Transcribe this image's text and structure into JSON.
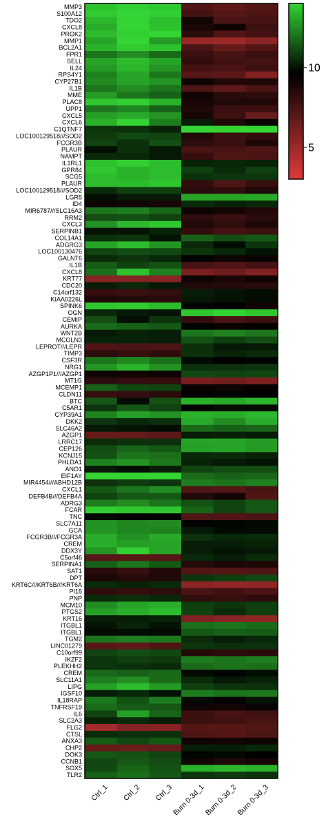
{
  "chart_data": {
    "type": "heatmap",
    "title": "",
    "xlabel": "",
    "ylabel": "",
    "columns": [
      "Ctrl_1",
      "Ctrl_2",
      "Ctrl_3",
      "Burn 0-3d_1",
      "Burn 0-3d_2",
      "Burn 0-3d_3"
    ],
    "rows": [
      "MMP3",
      "S100A12",
      "TDO2",
      "CXCL8",
      "PROK2",
      "MMP1",
      "BCL2A1",
      "FPR1",
      "SELL",
      "IL24",
      "RPS4Y1",
      "CYP27B1",
      "IL1B",
      "MME",
      "PLAC8",
      "UPP1",
      "CXCL5",
      "CXCL6",
      "C1QTNF7",
      "LOC100129518///SOD2",
      "FCGR3B",
      "PLAUR",
      "NAMPT",
      "IL1RL1",
      "GPR84",
      "SCG5",
      "PLAUR",
      "LOC100129518///SOD2",
      "LGR5",
      "ID4",
      "MIR6787///SLC16A3",
      "RRM2",
      "CXCL3",
      "SERPINB1",
      "COL14A1",
      "ADGRG3",
      "LOC100130476",
      "GALNT6",
      "IL1B",
      "CXCL8",
      "KRT77",
      "CDC20",
      "C14orf132",
      "KIAA0226L",
      "SPINK6",
      "OGN",
      "CEMIP",
      "AURKA",
      "WNT2B",
      "MCOLN3",
      "LEPROT///LEPR",
      "TIMP3",
      "CSF3R",
      "NRG1",
      "AZGP1P1///AZGP1",
      "MT1G",
      "MCEMP1",
      "CLDN11",
      "BTC",
      "C5AR1",
      "CYP39A1",
      "DKK2",
      "SLC46A2",
      "AZGP1",
      "LRRC17",
      "CEP126",
      "KCNJ15",
      "PHLDA1",
      "ANO1",
      "EIF1AY",
      "MIR4454///ABHD12B",
      "CXCL1",
      "DEFB4B///DEFB4A",
      "ADRG3",
      "FCAR",
      "TNC",
      "SLC7A11",
      "GCA",
      "FCGR3B///FCGR3A",
      "CREM",
      "DDX3Y",
      "C5orf46",
      "SERPINA1",
      "SAT1",
      "DPT",
      "KRT6C///KRT6B///KRT6A",
      "PI15",
      "PNP",
      "MCM10",
      "PTGS2",
      "KRT16",
      "ITGBL1",
      "ITGBL1",
      "TGM2",
      "LINC01279",
      "C10orf99",
      "IKZF2",
      "PLEKHH2",
      "CREM",
      "SLC11A1",
      "LIPG",
      "IGSF10",
      "IL18RAP",
      "TNFRSF19",
      "IL6",
      "SLC2A3",
      "FLG2",
      "CTSL",
      "ANXA3",
      "CHP2",
      "DOK3",
      "CCNB1",
      "SOX5",
      "TLR2"
    ],
    "values": [
      [
        13.6,
        13.9,
        13.7,
        7.2,
        6.8,
        7.1
      ],
      [
        13.8,
        14.1,
        13.9,
        7.6,
        7.1,
        7.3
      ],
      [
        13.4,
        14.2,
        13.5,
        9.0,
        7.4,
        7.5
      ],
      [
        13.2,
        14.3,
        13.6,
        8.8,
        9.1,
        7.8
      ],
      [
        13.5,
        13.9,
        14.6,
        8.3,
        7.2,
        7.6
      ],
      [
        13.0,
        14.1,
        12.8,
        5.2,
        5.0,
        5.5
      ],
      [
        13.3,
        13.8,
        13.6,
        7.4,
        6.6,
        7.2
      ],
      [
        12.0,
        12.5,
        11.8,
        7.9,
        7.5,
        7.9
      ],
      [
        13.0,
        13.5,
        13.0,
        8.1,
        7.7,
        7.6
      ],
      [
        12.8,
        13.4,
        12.7,
        7.6,
        7.4,
        7.8
      ],
      [
        12.3,
        13.0,
        12.1,
        7.0,
        6.9,
        5.8
      ],
      [
        12.5,
        13.0,
        12.7,
        9.2,
        8.7,
        8.7
      ],
      [
        12.0,
        12.5,
        12.0,
        7.3,
        6.8,
        7.4
      ],
      [
        12.8,
        12.0,
        11.6,
        9.1,
        8.4,
        8.2
      ],
      [
        13.7,
        13.9,
        13.3,
        8.9,
        8.6,
        8.7
      ],
      [
        12.0,
        12.4,
        11.6,
        8.7,
        7.9,
        7.8
      ],
      [
        12.9,
        13.1,
        12.7,
        8.9,
        7.8,
        6.5
      ],
      [
        13.3,
        14.4,
        12.2,
        10.2,
        8.6,
        9.3
      ],
      [
        10.7,
        10.6,
        10.3,
        14.1,
        14.2,
        14.1
      ],
      [
        10.8,
        11.1,
        11.0,
        8.6,
        7.9,
        8.1
      ],
      [
        11.0,
        10.6,
        11.2,
        8.3,
        7.9,
        8.7
      ],
      [
        9.9,
        10.6,
        10.1,
        7.5,
        7.5,
        7.3
      ],
      [
        10.5,
        10.4,
        10.1,
        8.0,
        7.3,
        7.4
      ],
      [
        13.6,
        13.9,
        13.5,
        10.3,
        10.4,
        10.3
      ],
      [
        13.7,
        13.3,
        13.5,
        10.9,
        10.5,
        10.9
      ],
      [
        13.5,
        13.3,
        13.5,
        10.6,
        10.7,
        10.7
      ],
      [
        13.5,
        13.5,
        13.7,
        8.1,
        7.3,
        8.0
      ],
      [
        10.5,
        10.9,
        10.9,
        8.4,
        8.2,
        8.7
      ],
      [
        9.9,
        10.1,
        10.1,
        13.0,
        13.0,
        13.1
      ],
      [
        9.2,
        9.1,
        8.9,
        10.5,
        10.3,
        10.4
      ],
      [
        12.0,
        12.2,
        11.7,
        9.2,
        9.0,
        8.6
      ],
      [
        11.2,
        11.3,
        11.0,
        8.3,
        7.9,
        8.4
      ],
      [
        12.6,
        13.4,
        13.7,
        8.6,
        8.2,
        8.8
      ],
      [
        10.0,
        10.0,
        10.3,
        8.1,
        7.6,
        7.8
      ],
      [
        10.6,
        10.7,
        10.0,
        11.6,
        11.2,
        11.4
      ],
      [
        13.0,
        13.5,
        12.7,
        10.4,
        9.9,
        10.7
      ],
      [
        11.0,
        11.2,
        11.1,
        10.7,
        10.4,
        10.0
      ],
      [
        10.5,
        10.7,
        10.4,
        9.5,
        9.2,
        9.3
      ],
      [
        11.5,
        11.0,
        11.3,
        7.5,
        7.2,
        7.6
      ],
      [
        11.9,
        13.6,
        12.3,
        6.0,
        6.4,
        5.8
      ],
      [
        5.6,
        5.7,
        5.6,
        9.2,
        8.8,
        9.1
      ],
      [
        10.2,
        10.4,
        10.1,
        8.6,
        8.5,
        8.4
      ],
      [
        8.0,
        7.9,
        8.1,
        10.2,
        10.0,
        9.9
      ],
      [
        8.6,
        8.5,
        8.4,
        10.1,
        10.0,
        9.8
      ],
      [
        13.7,
        13.8,
        13.5,
        9.7,
        9.6,
        9.0
      ],
      [
        10.4,
        10.1,
        10.0,
        13.7,
        14.2,
        13.7
      ],
      [
        11.2,
        9.9,
        10.7,
        8.1,
        7.4,
        7.8
      ],
      [
        11.8,
        11.6,
        11.4,
        9.7,
        9.3,
        9.4
      ],
      [
        10.1,
        10.3,
        10.2,
        12.0,
        12.3,
        12.0
      ],
      [
        10.3,
        10.3,
        10.2,
        11.3,
        10.9,
        11.2
      ],
      [
        7.2,
        7.4,
        7.3,
        10.6,
        10.1,
        10.1
      ],
      [
        8.3,
        8.0,
        8.2,
        10.6,
        10.3,
        10.5
      ],
      [
        12.0,
        12.4,
        11.9,
        9.8,
        9.6,
        9.7
      ],
      [
        12.7,
        13.3,
        12.6,
        10.6,
        10.6,
        10.7
      ],
      [
        9.2,
        9.1,
        9.2,
        11.1,
        11.0,
        11.1
      ],
      [
        8.3,
        8.1,
        8.0,
        6.0,
        6.2,
        5.9
      ],
      [
        11.6,
        11.1,
        11.0,
        9.3,
        9.2,
        9.4
      ],
      [
        8.0,
        8.1,
        8.4,
        9.5,
        9.7,
        9.6
      ],
      [
        11.4,
        9.8,
        11.3,
        13.3,
        13.1,
        13.4
      ],
      [
        10.7,
        11.4,
        11.0,
        9.7,
        9.9,
        9.8
      ],
      [
        12.3,
        12.9,
        12.6,
        13.3,
        13.2,
        13.4
      ],
      [
        10.7,
        10.4,
        10.6,
        13.1,
        12.5,
        13.2
      ],
      [
        10.1,
        10.0,
        9.9,
        11.8,
        11.6,
        11.7
      ],
      [
        6.6,
        6.7,
        6.9,
        10.2,
        10.3,
        10.2
      ],
      [
        10.5,
        10.6,
        10.6,
        13.0,
        13.0,
        12.8
      ],
      [
        11.2,
        11.7,
        11.4,
        12.9,
        13.0,
        12.8
      ],
      [
        11.3,
        12.0,
        11.9,
        10.4,
        10.5,
        10.3
      ],
      [
        12.3,
        12.6,
        12.1,
        10.3,
        10.1,
        10.0
      ],
      [
        10.1,
        9.9,
        10.2,
        11.0,
        11.2,
        11.2
      ],
      [
        14.5,
        14.5,
        14.5,
        11.8,
        11.6,
        11.7
      ],
      [
        10.6,
        10.8,
        10.7,
        12.2,
        12.0,
        12.3
      ],
      [
        11.4,
        12.0,
        12.5,
        7.3,
        7.1,
        7.5
      ],
      [
        11.0,
        11.4,
        11.4,
        8.6,
        9.0,
        7.2
      ],
      [
        12.2,
        12.5,
        12.0,
        11.3,
        11.0,
        11.4
      ],
      [
        13.9,
        13.7,
        13.7,
        11.7,
        11.0,
        11.4
      ],
      [
        9.8,
        9.6,
        9.7,
        7.3,
        7.2,
        7.4
      ],
      [
        12.6,
        12.4,
        12.5,
        9.5,
        9.7,
        9.8
      ],
      [
        12.7,
        12.4,
        12.3,
        10.1,
        9.8,
        9.8
      ],
      [
        13.2,
        12.6,
        13.1,
        10.6,
        10.4,
        10.5
      ],
      [
        13.2,
        12.9,
        13.0,
        10.2,
        10.2,
        10.3
      ],
      [
        12.7,
        13.9,
        13.0,
        10.2,
        10.0,
        10.1
      ],
      [
        7.0,
        7.0,
        7.1,
        10.4,
        10.2,
        10.5
      ],
      [
        11.6,
        12.0,
        11.4,
        8.5,
        8.8,
        8.7
      ],
      [
        8.4,
        8.0,
        8.6,
        7.2,
        7.1,
        7.3
      ],
      [
        8.8,
        8.5,
        8.6,
        10.7,
        10.9,
        11.1
      ],
      [
        10.5,
        10.3,
        10.5,
        5.5,
        5.3,
        5.4
      ],
      [
        8.2,
        8.0,
        8.3,
        7.5,
        7.7,
        7.4
      ],
      [
        10.5,
        10.6,
        10.4,
        8.2,
        8.0,
        8.3
      ],
      [
        12.5,
        13.0,
        13.2,
        10.9,
        10.7,
        10.9
      ],
      [
        12.9,
        13.2,
        13.5,
        11.0,
        10.5,
        10.9
      ],
      [
        10.2,
        10.2,
        10.3,
        5.8,
        5.6,
        5.4
      ],
      [
        10.0,
        10.3,
        10.0,
        11.9,
        12.0,
        11.8
      ],
      [
        9.8,
        9.8,
        9.8,
        11.4,
        11.6,
        11.5
      ],
      [
        12.0,
        12.2,
        12.1,
        10.5,
        10.2,
        10.4
      ],
      [
        7.0,
        6.8,
        7.3,
        10.7,
        10.6,
        10.6
      ],
      [
        11.0,
        11.2,
        11.1,
        8.5,
        8.3,
        8.4
      ],
      [
        10.7,
        10.9,
        10.8,
        12.2,
        12.0,
        12.2
      ],
      [
        10.7,
        10.6,
        10.5,
        11.8,
        12.0,
        11.9
      ],
      [
        11.8,
        11.6,
        11.8,
        9.8,
        9.7,
        9.9
      ],
      [
        12.2,
        12.5,
        11.8,
        10.5,
        10.1,
        10.3
      ],
      [
        12.9,
        13.5,
        12.8,
        10.9,
        10.7,
        10.6
      ],
      [
        10.2,
        10.4,
        10.0,
        12.2,
        12.0,
        12.1
      ],
      [
        12.1,
        11.3,
        12.2,
        9.8,
        9.5,
        10.0
      ],
      [
        11.8,
        11.5,
        11.4,
        9.1,
        9.0,
        9.3
      ],
      [
        11.0,
        12.9,
        11.7,
        7.8,
        7.5,
        7.7
      ],
      [
        10.3,
        10.5,
        10.2,
        7.8,
        7.7,
        7.5
      ],
      [
        4.8,
        5.7,
        5.6,
        7.1,
        7.0,
        7.2
      ],
      [
        10.5,
        10.6,
        10.6,
        7.3,
        7.1,
        7.4
      ],
      [
        11.5,
        11.1,
        11.4,
        9.1,
        9.0,
        9.2
      ],
      [
        6.6,
        6.5,
        6.6,
        10.2,
        10.2,
        10.4
      ],
      [
        11.4,
        11.3,
        11.0,
        9.7,
        9.8,
        9.6
      ],
      [
        11.1,
        11.4,
        11.2,
        9.0,
        8.7,
        8.9
      ],
      [
        11.1,
        11.7,
        11.3,
        13.3,
        13.4,
        13.3
      ],
      [
        11.6,
        11.9,
        11.4,
        10.7,
        10.8,
        10.6
      ]
    ],
    "colorbar": {
      "ticks": [
        5,
        10
      ],
      "range": [
        3,
        14
      ],
      "low_color": "#e03b3b",
      "mid_color": "#000000",
      "high_color": "#33d433",
      "mid_value": 9.6
    }
  }
}
